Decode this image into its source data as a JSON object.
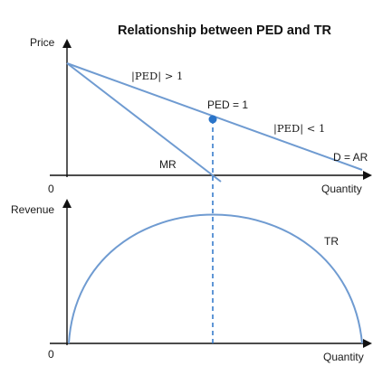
{
  "title": "Relationship between PED and TR",
  "top_chart": {
    "y_axis_label": "Price",
    "x_axis_label": "Quantity",
    "origin_label": "0",
    "demand_label": "D = AR",
    "mr_label": "MR",
    "unit_elastic_label": "PED = 1",
    "elastic_label": "|PED| > 1",
    "inelastic_label": "|PED| < 1"
  },
  "bottom_chart": {
    "y_axis_label": "Revenue",
    "x_axis_label": "Quantity",
    "origin_label": "0",
    "tr_label": "TR"
  },
  "colors": {
    "line": "#6f9bd1",
    "point": "#2a74c9",
    "axis": "#111111",
    "text": "#1a1a1a"
  }
}
